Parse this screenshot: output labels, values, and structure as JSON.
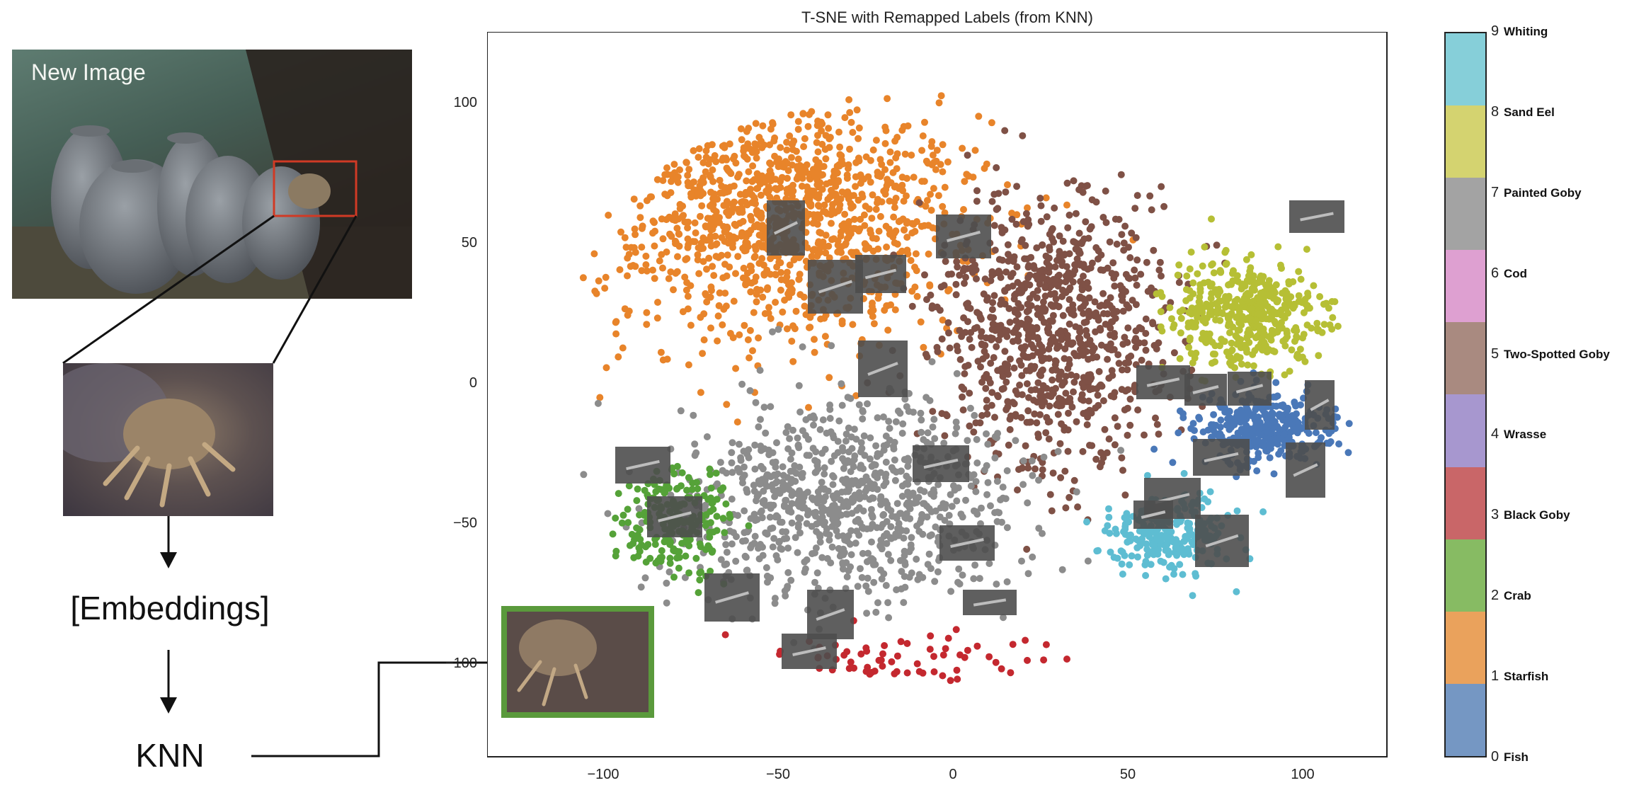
{
  "left_panel": {
    "photo_label": "New Image",
    "embeddings_label": "[Embeddings]",
    "knn_label": "KNN"
  },
  "plot": {
    "title": "T-SNE with Remapped Labels (from KNN)",
    "x_ticks": [
      "−100",
      "−50",
      "0",
      "50",
      "100"
    ],
    "y_ticks": [
      "100",
      "50",
      "0",
      "−50",
      "−100"
    ]
  },
  "colorbar": {
    "ticks": [
      "9",
      "8",
      "7",
      "6",
      "5",
      "4",
      "3",
      "2",
      "1",
      "0"
    ],
    "classes": [
      "Whiting",
      "Sand Eel",
      "Painted Goby",
      "Cod",
      "Two-Spotted Goby",
      "Wrasse",
      "Black Goby",
      "Crab",
      "Starfish",
      "Fish"
    ],
    "colors": [
      "#86cfd9",
      "#d4d370",
      "#a3a3a3",
      "#dea0d1",
      "#a98a80",
      "#a797cf",
      "#c96668",
      "#87bb63",
      "#eaa25c",
      "#7597c3"
    ]
  },
  "highlight_border_color": "#5a9a3c",
  "crop_box_color": "#d03a25"
}
